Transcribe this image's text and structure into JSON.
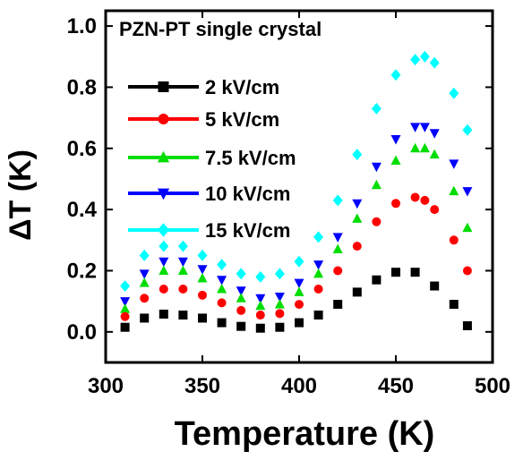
{
  "chart_data": {
    "type": "scatter",
    "title": "PZN-PT  single crystal",
    "xlabel": "Temperature (K)",
    "ylabel": "ΔT (K)",
    "xlim": [
      300,
      500
    ],
    "ylim": [
      -0.1,
      1.05
    ],
    "xticks": [
      300,
      350,
      400,
      450,
      500
    ],
    "yticks": [
      0.0,
      0.2,
      0.4,
      0.6,
      0.8,
      1.0
    ],
    "grid": false,
    "legend_position": "left",
    "series": [
      {
        "name": "2 kV/cm",
        "marker": "square",
        "color": "#000000",
        "x": [
          310,
          320,
          330,
          340,
          350,
          360,
          370,
          380,
          390,
          400,
          410,
          420,
          430,
          440,
          450,
          460,
          470,
          480,
          487
        ],
        "y": [
          0.015,
          0.045,
          0.058,
          0.055,
          0.045,
          0.03,
          0.018,
          0.012,
          0.015,
          0.03,
          0.055,
          0.09,
          0.13,
          0.17,
          0.195,
          0.195,
          0.15,
          0.09,
          0.02
        ]
      },
      {
        "name": "5 kV/cm",
        "marker": "circle",
        "color": "#ff0000",
        "x": [
          310,
          320,
          330,
          340,
          350,
          360,
          370,
          380,
          390,
          400,
          410,
          420,
          430,
          440,
          450,
          460,
          465,
          470,
          480,
          487
        ],
        "y": [
          0.05,
          0.11,
          0.14,
          0.14,
          0.12,
          0.095,
          0.07,
          0.055,
          0.06,
          0.09,
          0.14,
          0.2,
          0.28,
          0.36,
          0.42,
          0.44,
          0.43,
          0.4,
          0.3,
          0.2
        ]
      },
      {
        "name": "7.5 kV/cm",
        "marker": "triangle-up",
        "color": "#00dd00",
        "x": [
          310,
          320,
          330,
          340,
          350,
          360,
          370,
          380,
          390,
          400,
          410,
          420,
          430,
          440,
          450,
          460,
          465,
          470,
          480,
          487
        ],
        "y": [
          0.075,
          0.16,
          0.2,
          0.2,
          0.175,
          0.14,
          0.11,
          0.085,
          0.09,
          0.13,
          0.19,
          0.27,
          0.37,
          0.48,
          0.56,
          0.6,
          0.6,
          0.58,
          0.46,
          0.34
        ]
      },
      {
        "name": "10 kV/cm",
        "marker": "triangle-down",
        "color": "#0000ff",
        "x": [
          310,
          320,
          330,
          340,
          350,
          360,
          370,
          380,
          390,
          400,
          410,
          420,
          430,
          440,
          450,
          460,
          465,
          470,
          480,
          487
        ],
        "y": [
          0.1,
          0.19,
          0.23,
          0.23,
          0.205,
          0.17,
          0.135,
          0.11,
          0.115,
          0.16,
          0.22,
          0.31,
          0.42,
          0.54,
          0.63,
          0.67,
          0.67,
          0.65,
          0.55,
          0.46
        ]
      },
      {
        "name": "15 kV/cm",
        "marker": "diamond",
        "color": "#00ffff",
        "x": [
          310,
          320,
          330,
          340,
          350,
          360,
          370,
          380,
          390,
          400,
          410,
          420,
          430,
          440,
          450,
          460,
          465,
          470,
          480,
          487
        ],
        "y": [
          0.15,
          0.25,
          0.28,
          0.28,
          0.25,
          0.22,
          0.19,
          0.18,
          0.19,
          0.23,
          0.31,
          0.43,
          0.58,
          0.73,
          0.84,
          0.89,
          0.9,
          0.88,
          0.78,
          0.66
        ]
      }
    ]
  }
}
